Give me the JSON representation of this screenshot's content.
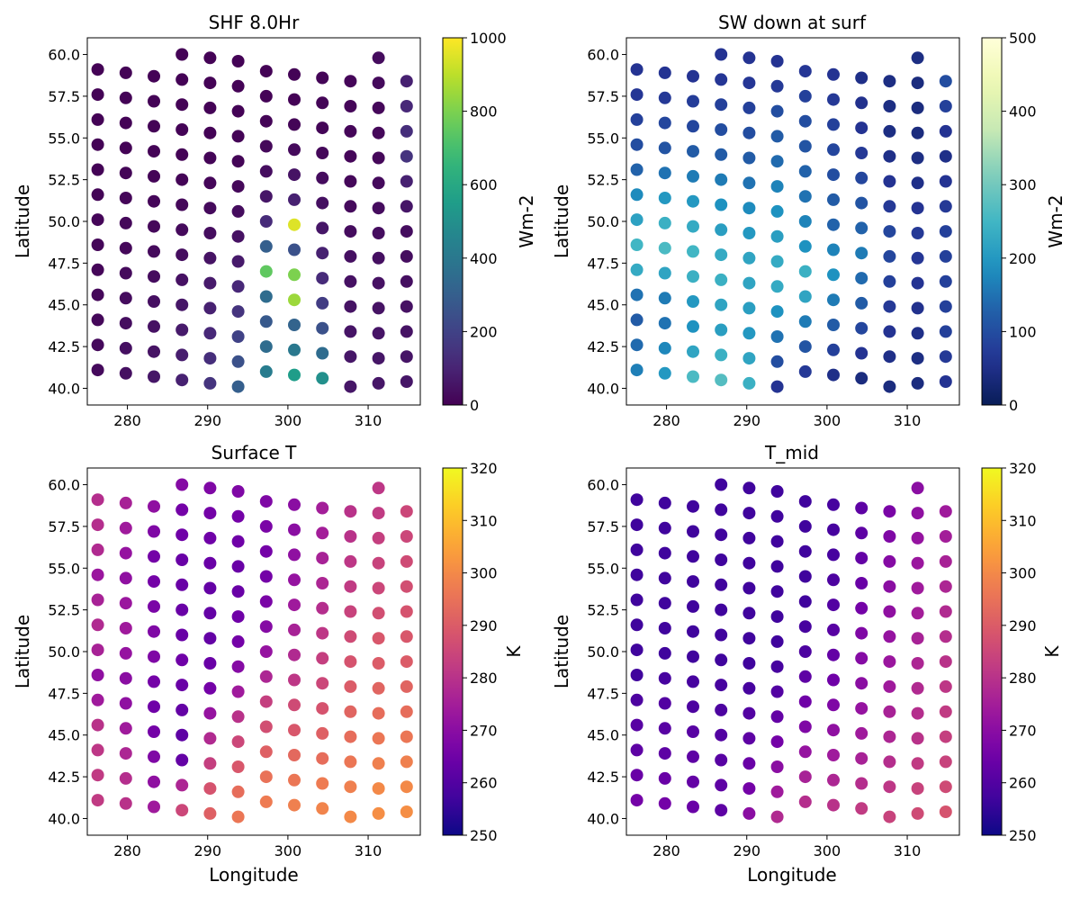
{
  "figure": {
    "title": ""
  },
  "chart_data": [
    {
      "type": "scatter",
      "title": "SHF 8.0Hr",
      "xlabel": "",
      "ylabel": "Latitude",
      "xlim": [
        275,
        316.5
      ],
      "ylim": [
        39,
        61
      ],
      "xticks": [
        "280",
        "290",
        "300",
        "310"
      ],
      "yticks": [
        "40.0",
        "42.5",
        "45.0",
        "47.5",
        "50.0",
        "52.5",
        "55.0",
        "57.5",
        "60.0"
      ],
      "colormap": "viridis",
      "colorbar": {
        "label": "Wm-2",
        "min": 0,
        "max": 1000,
        "ticks": [
          "0",
          "200",
          "400",
          "600",
          "800",
          "1000"
        ]
      },
      "grid": false,
      "field": "shf"
    },
    {
      "type": "scatter",
      "title": "SW down at surf",
      "xlabel": "",
      "ylabel": "Latitude",
      "xlim": [
        275,
        316.5
      ],
      "ylim": [
        39,
        61
      ],
      "xticks": [
        "280",
        "290",
        "300",
        "310"
      ],
      "yticks": [
        "40.0",
        "42.5",
        "45.0",
        "47.5",
        "50.0",
        "52.5",
        "55.0",
        "57.5",
        "60.0"
      ],
      "colormap": "YlGnBu_r",
      "colorbar": {
        "label": "Wm-2",
        "min": 0,
        "max": 500,
        "ticks": [
          "0",
          "100",
          "200",
          "300",
          "400",
          "500"
        ]
      },
      "grid": false,
      "field": "sw"
    },
    {
      "type": "scatter",
      "title": "Surface T",
      "xlabel": "Longitude",
      "ylabel": "Latitude",
      "xlim": [
        275,
        316.5
      ],
      "ylim": [
        39,
        61
      ],
      "xticks": [
        "280",
        "290",
        "300",
        "310"
      ],
      "yticks": [
        "40.0",
        "42.5",
        "45.0",
        "47.5",
        "50.0",
        "52.5",
        "55.0",
        "57.5",
        "60.0"
      ],
      "colormap": "plasma",
      "colorbar": {
        "label": "K",
        "min": 250,
        "max": 320,
        "ticks": [
          "250",
          "260",
          "270",
          "280",
          "290",
          "300",
          "310",
          "320"
        ]
      },
      "grid": false,
      "field": "tsurf"
    },
    {
      "type": "scatter",
      "title": "T_mid",
      "xlabel": "Longitude",
      "ylabel": "Latitude",
      "xlim": [
        275,
        316.5
      ],
      "ylim": [
        39,
        61
      ],
      "xticks": [
        "280",
        "290",
        "300",
        "310"
      ],
      "yticks": [
        "40.0",
        "42.5",
        "45.0",
        "47.5",
        "50.0",
        "52.5",
        "55.0",
        "57.5",
        "60.0"
      ],
      "colormap": "plasma",
      "colorbar": {
        "label": "K",
        "min": 250,
        "max": 320,
        "ticks": [
          "250",
          "260",
          "270",
          "280",
          "290",
          "300",
          "310",
          "320"
        ]
      },
      "grid": false,
      "field": "tmid"
    }
  ],
  "grid_points": {
    "columns": [
      "lon",
      "lat",
      "shf",
      "sw",
      "tsurf",
      "tmid"
    ],
    "rows": [
      [
        276.3,
        41.1,
        25,
        165,
        282,
        266
      ],
      [
        276.3,
        42.6,
        22,
        140,
        282,
        264
      ],
      [
        276.3,
        44.1,
        20,
        120,
        281,
        262
      ],
      [
        276.3,
        45.6,
        20,
        150,
        280,
        261
      ],
      [
        276.3,
        47.1,
        15,
        230,
        274,
        259
      ],
      [
        276.3,
        48.6,
        15,
        250,
        271,
        257
      ],
      [
        276.3,
        50.1,
        15,
        215,
        276,
        257
      ],
      [
        276.3,
        51.6,
        10,
        180,
        278,
        257
      ],
      [
        276.3,
        53.1,
        5,
        130,
        276,
        257
      ],
      [
        276.3,
        54.6,
        5,
        100,
        273,
        257
      ],
      [
        276.3,
        56.1,
        5,
        80,
        278,
        257
      ],
      [
        276.3,
        57.6,
        5,
        65,
        279,
        257
      ],
      [
        276.3,
        59.1,
        5,
        60,
        279,
        257
      ],
      [
        279.8,
        40.9,
        40,
        200,
        280,
        266
      ],
      [
        279.8,
        42.4,
        40,
        175,
        279,
        264
      ],
      [
        279.8,
        43.9,
        35,
        150,
        277,
        262
      ],
      [
        279.8,
        45.4,
        30,
        160,
        274,
        261
      ],
      [
        279.8,
        46.9,
        25,
        220,
        271,
        260
      ],
      [
        279.8,
        48.4,
        20,
        260,
        270,
        258
      ],
      [
        279.8,
        49.9,
        20,
        240,
        272,
        257
      ],
      [
        279.8,
        51.4,
        15,
        200,
        274,
        257
      ],
      [
        279.8,
        52.9,
        10,
        150,
        273,
        257
      ],
      [
        279.8,
        54.4,
        5,
        110,
        271,
        257
      ],
      [
        279.8,
        55.9,
        5,
        90,
        272,
        257
      ],
      [
        279.8,
        57.4,
        5,
        70,
        274,
        257
      ],
      [
        279.8,
        58.9,
        5,
        60,
        276,
        257
      ],
      [
        283.3,
        40.7,
        60,
        260,
        274,
        264
      ],
      [
        283.3,
        42.2,
        50,
        220,
        271,
        263
      ],
      [
        283.3,
        43.7,
        45,
        190,
        268,
        262
      ],
      [
        283.3,
        45.2,
        40,
        200,
        266,
        261
      ],
      [
        283.3,
        46.7,
        30,
        240,
        265,
        259
      ],
      [
        283.3,
        48.2,
        25,
        250,
        266,
        258
      ],
      [
        283.3,
        49.7,
        20,
        230,
        268,
        257
      ],
      [
        283.3,
        51.2,
        15,
        200,
        268,
        257
      ],
      [
        283.3,
        52.7,
        10,
        160,
        267,
        257
      ],
      [
        283.3,
        54.2,
        5,
        120,
        266,
        257
      ],
      [
        283.3,
        55.7,
        5,
        90,
        266,
        257
      ],
      [
        283.3,
        57.2,
        5,
        75,
        268,
        257
      ],
      [
        283.3,
        58.7,
        5,
        60,
        271,
        257
      ],
      [
        286.8,
        40.5,
        90,
        270,
        285,
        262
      ],
      [
        286.8,
        42.0,
        80,
        240,
        277,
        262
      ],
      [
        286.8,
        43.5,
        70,
        210,
        263,
        261
      ],
      [
        286.8,
        45.0,
        60,
        220,
        262,
        260
      ],
      [
        286.8,
        46.5,
        45,
        240,
        263,
        259
      ],
      [
        286.8,
        48.0,
        35,
        230,
        264,
        258
      ],
      [
        286.8,
        49.5,
        25,
        210,
        265,
        257
      ],
      [
        286.8,
        51.0,
        20,
        190,
        264,
        257
      ],
      [
        286.8,
        52.5,
        10,
        160,
        264,
        257
      ],
      [
        286.8,
        54.0,
        5,
        120,
        264,
        257
      ],
      [
        286.8,
        55.5,
        5,
        100,
        264,
        257
      ],
      [
        286.8,
        57.0,
        5,
        80,
        265,
        257
      ],
      [
        286.8,
        58.5,
        5,
        65,
        266,
        257
      ],
      [
        286.8,
        60.0,
        5,
        60,
        269,
        257
      ],
      [
        290.3,
        40.3,
        150,
        240,
        291,
        270
      ],
      [
        290.3,
        41.8,
        130,
        220,
        288,
        266
      ],
      [
        290.3,
        43.3,
        110,
        200,
        283,
        264
      ],
      [
        290.3,
        44.8,
        90,
        210,
        278,
        262
      ],
      [
        290.3,
        46.3,
        70,
        220,
        272,
        260
      ],
      [
        290.3,
        47.8,
        50,
        220,
        266,
        258
      ],
      [
        290.3,
        49.3,
        35,
        200,
        264,
        257
      ],
      [
        290.3,
        50.8,
        25,
        180,
        263,
        257
      ],
      [
        290.3,
        52.3,
        15,
        150,
        263,
        257
      ],
      [
        290.3,
        53.8,
        10,
        120,
        263,
        257
      ],
      [
        290.3,
        55.3,
        5,
        100,
        264,
        257
      ],
      [
        290.3,
        56.8,
        5,
        80,
        265,
        257
      ],
      [
        290.3,
        58.3,
        5,
        65,
        266,
        257
      ],
      [
        290.3,
        59.8,
        5,
        60,
        268,
        257
      ],
      [
        293.8,
        40.1,
        300,
        60,
        296,
        278
      ],
      [
        293.8,
        41.6,
        250,
        100,
        294,
        274
      ],
      [
        293.8,
        43.1,
        200,
        150,
        289,
        270
      ],
      [
        293.8,
        44.6,
        150,
        190,
        285,
        266
      ],
      [
        293.8,
        46.1,
        110,
        230,
        280,
        263
      ],
      [
        293.8,
        47.6,
        70,
        230,
        274,
        260
      ],
      [
        293.8,
        49.1,
        45,
        210,
        269,
        258
      ],
      [
        293.8,
        50.6,
        30,
        190,
        266,
        257
      ],
      [
        293.8,
        52.1,
        20,
        170,
        265,
        257
      ],
      [
        293.8,
        53.6,
        10,
        140,
        264,
        257
      ],
      [
        293.8,
        55.1,
        5,
        120,
        264,
        257
      ],
      [
        293.8,
        56.6,
        5,
        100,
        265,
        257
      ],
      [
        293.8,
        58.1,
        5,
        70,
        266,
        257
      ],
      [
        293.8,
        59.6,
        5,
        60,
        268,
        257
      ],
      [
        297.3,
        41.0,
        420,
        70,
        297,
        279
      ],
      [
        297.3,
        42.5,
        350,
        110,
        295,
        276
      ],
      [
        297.3,
        44.0,
        280,
        160,
        291,
        272
      ],
      [
        297.3,
        45.5,
        350,
        220,
        287,
        268
      ],
      [
        297.3,
        47.0,
        750,
        240,
        283,
        265
      ],
      [
        297.3,
        48.5,
        300,
        190,
        277,
        262
      ],
      [
        297.3,
        50.0,
        120,
        170,
        272,
        259
      ],
      [
        297.3,
        51.5,
        60,
        150,
        269,
        258
      ],
      [
        297.3,
        53.0,
        35,
        130,
        267,
        257
      ],
      [
        297.3,
        54.5,
        20,
        110,
        266,
        257
      ],
      [
        297.3,
        56.0,
        10,
        100,
        266,
        257
      ],
      [
        297.3,
        57.5,
        5,
        80,
        267,
        257
      ],
      [
        297.3,
        59.0,
        5,
        65,
        268,
        257
      ],
      [
        300.8,
        40.8,
        550,
        50,
        298,
        280
      ],
      [
        300.8,
        42.3,
        400,
        80,
        296,
        277
      ],
      [
        300.8,
        43.8,
        320,
        120,
        293,
        274
      ],
      [
        300.8,
        45.3,
        850,
        160,
        289,
        271
      ],
      [
        300.8,
        46.8,
        800,
        190,
        286,
        268
      ],
      [
        300.8,
        48.3,
        250,
        170,
        281,
        265
      ],
      [
        300.8,
        49.8,
        950,
        130,
        278,
        263
      ],
      [
        300.8,
        51.3,
        90,
        120,
        276,
        261
      ],
      [
        300.8,
        52.8,
        50,
        100,
        274,
        260
      ],
      [
        300.8,
        54.3,
        25,
        90,
        272,
        259
      ],
      [
        300.8,
        55.8,
        10,
        80,
        271,
        258
      ],
      [
        300.8,
        57.3,
        5,
        70,
        270,
        258
      ],
      [
        300.8,
        58.8,
        5,
        60,
        270,
        258
      ],
      [
        304.3,
        40.6,
        500,
        40,
        299,
        282
      ],
      [
        304.3,
        42.1,
        350,
        60,
        297,
        279
      ],
      [
        304.3,
        43.6,
        250,
        90,
        294,
        276
      ],
      [
        304.3,
        45.1,
        180,
        120,
        291,
        274
      ],
      [
        304.3,
        46.6,
        120,
        140,
        288,
        272
      ],
      [
        304.3,
        48.1,
        90,
        160,
        285,
        270
      ],
      [
        304.3,
        49.6,
        60,
        130,
        283,
        269
      ],
      [
        304.3,
        51.1,
        40,
        110,
        281,
        268
      ],
      [
        304.3,
        52.6,
        30,
        90,
        279,
        266
      ],
      [
        304.3,
        54.1,
        20,
        70,
        277,
        264
      ],
      [
        304.3,
        55.6,
        10,
        60,
        276,
        263
      ],
      [
        304.3,
        57.1,
        10,
        55,
        275,
        262
      ],
      [
        304.3,
        58.6,
        10,
        50,
        275,
        262
      ],
      [
        307.8,
        40.1,
        60,
        40,
        300,
        284
      ],
      [
        307.8,
        41.9,
        60,
        50,
        298,
        281
      ],
      [
        307.8,
        43.4,
        55,
        60,
        296,
        279
      ],
      [
        307.8,
        44.9,
        50,
        70,
        294,
        277
      ],
      [
        307.8,
        46.4,
        45,
        80,
        292,
        276
      ],
      [
        307.8,
        47.9,
        40,
        90,
        290,
        274
      ],
      [
        307.8,
        49.4,
        30,
        90,
        288,
        273
      ],
      [
        307.8,
        50.9,
        25,
        70,
        286,
        272
      ],
      [
        307.8,
        52.4,
        20,
        60,
        284,
        271
      ],
      [
        307.8,
        53.9,
        15,
        50,
        282,
        270
      ],
      [
        307.8,
        55.4,
        15,
        45,
        281,
        269
      ],
      [
        307.8,
        56.9,
        15,
        45,
        280,
        268
      ],
      [
        307.8,
        58.4,
        15,
        45,
        280,
        267
      ],
      [
        311.3,
        40.3,
        60,
        40,
        301,
        286
      ],
      [
        311.3,
        41.8,
        60,
        45,
        300,
        284
      ],
      [
        311.3,
        43.3,
        55,
        50,
        298,
        282
      ],
      [
        311.3,
        44.8,
        50,
        55,
        296,
        280
      ],
      [
        311.3,
        46.3,
        45,
        60,
        294,
        279
      ],
      [
        311.3,
        47.8,
        40,
        65,
        292,
        278
      ],
      [
        311.3,
        49.3,
        35,
        70,
        290,
        277
      ],
      [
        311.3,
        50.8,
        30,
        60,
        289,
        276
      ],
      [
        311.3,
        52.3,
        25,
        50,
        287,
        275
      ],
      [
        311.3,
        53.8,
        20,
        45,
        285,
        274
      ],
      [
        311.3,
        55.3,
        20,
        40,
        284,
        273
      ],
      [
        311.3,
        56.8,
        20,
        40,
        283,
        272
      ],
      [
        311.3,
        58.3,
        25,
        40,
        282,
        271
      ],
      [
        311.3,
        59.8,
        30,
        45,
        281,
        270
      ],
      [
        314.8,
        40.4,
        60,
        60,
        301,
        288
      ],
      [
        314.8,
        41.9,
        55,
        70,
        300,
        286
      ],
      [
        314.8,
        43.4,
        50,
        80,
        298,
        284
      ],
      [
        314.8,
        44.9,
        45,
        80,
        296,
        283
      ],
      [
        314.8,
        46.4,
        40,
        80,
        294,
        282
      ],
      [
        314.8,
        47.9,
        35,
        80,
        292,
        281
      ],
      [
        314.8,
        49.4,
        35,
        80,
        290,
        280
      ],
      [
        314.8,
        50.9,
        60,
        70,
        289,
        279
      ],
      [
        314.8,
        52.4,
        90,
        60,
        288,
        278
      ],
      [
        314.8,
        53.9,
        150,
        50,
        287,
        277
      ],
      [
        314.8,
        55.4,
        130,
        60,
        286,
        276
      ],
      [
        314.8,
        56.9,
        110,
        80,
        285,
        275
      ],
      [
        314.8,
        58.4,
        90,
        100,
        285,
        274
      ]
    ]
  }
}
